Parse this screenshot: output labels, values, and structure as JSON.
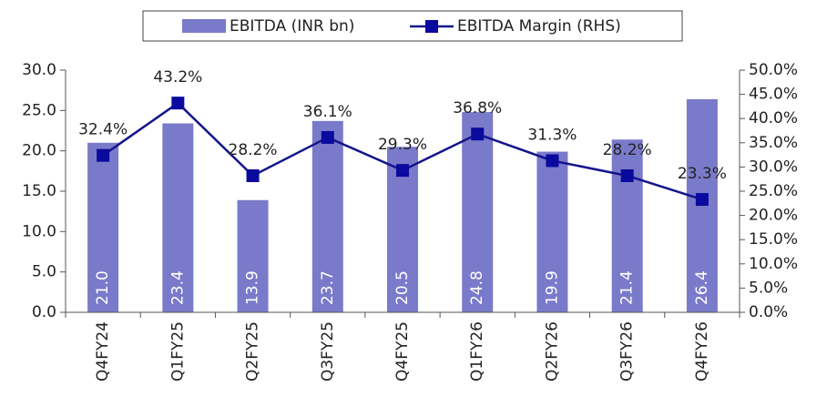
{
  "chart_data": {
    "type": "combo",
    "categories": [
      "Q4FY24",
      "Q1FY25",
      "Q2FY25",
      "Q3FY25",
      "Q4FY25",
      "Q1FY26",
      "Q2FY26",
      "Q3FY26",
      "Q4FY26"
    ],
    "series": [
      {
        "name": "EBITDA (INR bn)",
        "type": "bar",
        "color": "#7a7acb",
        "values": [
          21.0,
          23.4,
          13.9,
          23.7,
          20.5,
          24.8,
          19.9,
          21.4,
          26.4
        ],
        "value_labels": [
          "21.0",
          "23.4",
          "13.9",
          "23.7",
          "20.5",
          "24.8",
          "19.9",
          "21.4",
          "26.4"
        ]
      },
      {
        "name": "EBITDA Margin (RHS)",
        "type": "line",
        "axis": "y2",
        "color": "#14148a",
        "values": [
          32.4,
          43.2,
          28.2,
          36.1,
          29.3,
          36.8,
          31.3,
          28.2,
          23.3
        ],
        "value_labels": [
          "32.4%",
          "43.2%",
          "28.2%",
          "36.1%",
          "29.3%",
          "36.8%",
          "31.3%",
          "28.2%",
          "23.3%"
        ]
      }
    ],
    "ylim": [
      0,
      30
    ],
    "yticks": [
      {
        "value": 0,
        "label": "0.0"
      },
      {
        "value": 5,
        "label": "5.0"
      },
      {
        "value": 10,
        "label": "10.0"
      },
      {
        "value": 15,
        "label": "15.0"
      },
      {
        "value": 20,
        "label": "20.0"
      },
      {
        "value": 25,
        "label": "25.0"
      },
      {
        "value": 30,
        "label": "30.0"
      }
    ],
    "y2lim": [
      0,
      50
    ],
    "y2ticks": [
      {
        "value": 0,
        "label": "0.0%"
      },
      {
        "value": 5,
        "label": "5.0%"
      },
      {
        "value": 10,
        "label": "10.0%"
      },
      {
        "value": 15,
        "label": "15.0%"
      },
      {
        "value": 20,
        "label": "20.0%"
      },
      {
        "value": 25,
        "label": "25.0%"
      },
      {
        "value": 30,
        "label": "30.0%"
      },
      {
        "value": 35,
        "label": "35.0%"
      },
      {
        "value": 40,
        "label": "40.0%"
      },
      {
        "value": 45,
        "label": "45.0%"
      },
      {
        "value": 50,
        "label": "50.0%"
      }
    ],
    "grid": false,
    "legend": "top"
  }
}
